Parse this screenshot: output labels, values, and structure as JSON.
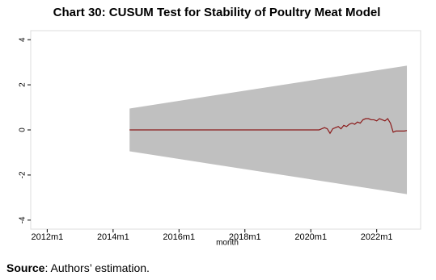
{
  "chart_data": {
    "type": "cusum",
    "title": "Chart 30: CUSUM Test for Stability of Poultry Meat Model",
    "x_label": "month",
    "note_label": "Source",
    "note": ": Authors’ estimation.",
    "xlim": [
      618,
      760
    ],
    "xticks": [
      {
        "value": 624,
        "label": "2012m1"
      },
      {
        "value": 648,
        "label": "2014m1"
      },
      {
        "value": 672,
        "label": "2016m1"
      },
      {
        "value": 696,
        "label": "2018m1"
      },
      {
        "value": 720,
        "label": "2020m1"
      },
      {
        "value": 744,
        "label": "2022m1"
      }
    ],
    "ylim": [
      -4.4,
      4.4
    ],
    "yticks": [
      -4,
      -2,
      0,
      2,
      4
    ],
    "band": {
      "color": "#c0c0c0",
      "x": [
        654,
        755
      ],
      "upper": [
        0.95,
        2.85
      ],
      "lower": [
        -0.95,
        -2.85
      ]
    },
    "cusum": {
      "color": "#8b1a1a",
      "x": [
        654,
        723,
        724,
        725,
        726,
        727,
        728,
        729,
        730,
        731,
        732,
        733,
        734,
        735,
        736,
        737,
        738,
        739,
        740,
        741,
        742,
        743,
        744,
        745,
        746,
        747,
        748,
        749,
        750,
        751,
        752,
        753,
        754,
        755
      ],
      "values": [
        0,
        0,
        0.05,
        0.1,
        0.05,
        -0.15,
        0.05,
        0.1,
        0.15,
        0.05,
        0.2,
        0.15,
        0.25,
        0.3,
        0.25,
        0.35,
        0.3,
        0.45,
        0.5,
        0.5,
        0.45,
        0.45,
        0.4,
        0.5,
        0.45,
        0.4,
        0.5,
        0.3,
        -0.1,
        -0.05,
        -0.05,
        -0.05,
        -0.05,
        -0.03
      ]
    }
  }
}
